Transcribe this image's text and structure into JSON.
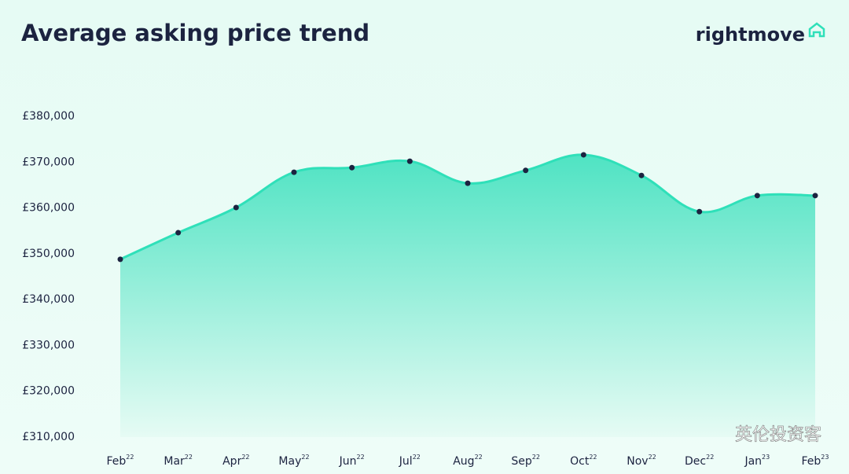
{
  "chart_data": {
    "type": "area",
    "title": "Average asking price trend",
    "brand": "rightmove",
    "watermark": "英伦投资客",
    "categories": [
      "Feb",
      "Mar",
      "Apr",
      "May",
      "Jun",
      "Jul",
      "Aug",
      "Sep",
      "Oct",
      "Nov",
      "Dec",
      "Jan",
      "Feb"
    ],
    "category_years": [
      "22",
      "22",
      "22",
      "22",
      "22",
      "22",
      "22",
      "22",
      "22",
      "22",
      "22",
      "23",
      "23"
    ],
    "values": [
      348800,
      354600,
      360100,
      367800,
      368800,
      370200,
      365400,
      368200,
      371600,
      367100,
      359200,
      362700,
      362700
    ],
    "color": "#2fe0b9",
    "marker_color": "#1c2340",
    "ylim": [
      310000,
      380000
    ],
    "yticks": [
      {
        "value": 310000,
        "label": "£310,000"
      },
      {
        "value": 320000,
        "label": "£320,000"
      },
      {
        "value": 330000,
        "label": "£330,000"
      },
      {
        "value": 340000,
        "label": "£340,000"
      },
      {
        "value": 350000,
        "label": "£350,000"
      },
      {
        "value": 360000,
        "label": "£360,000"
      },
      {
        "value": 370000,
        "label": "£370,000"
      },
      {
        "value": 380000,
        "label": "£380,000"
      }
    ],
    "grid": false
  }
}
